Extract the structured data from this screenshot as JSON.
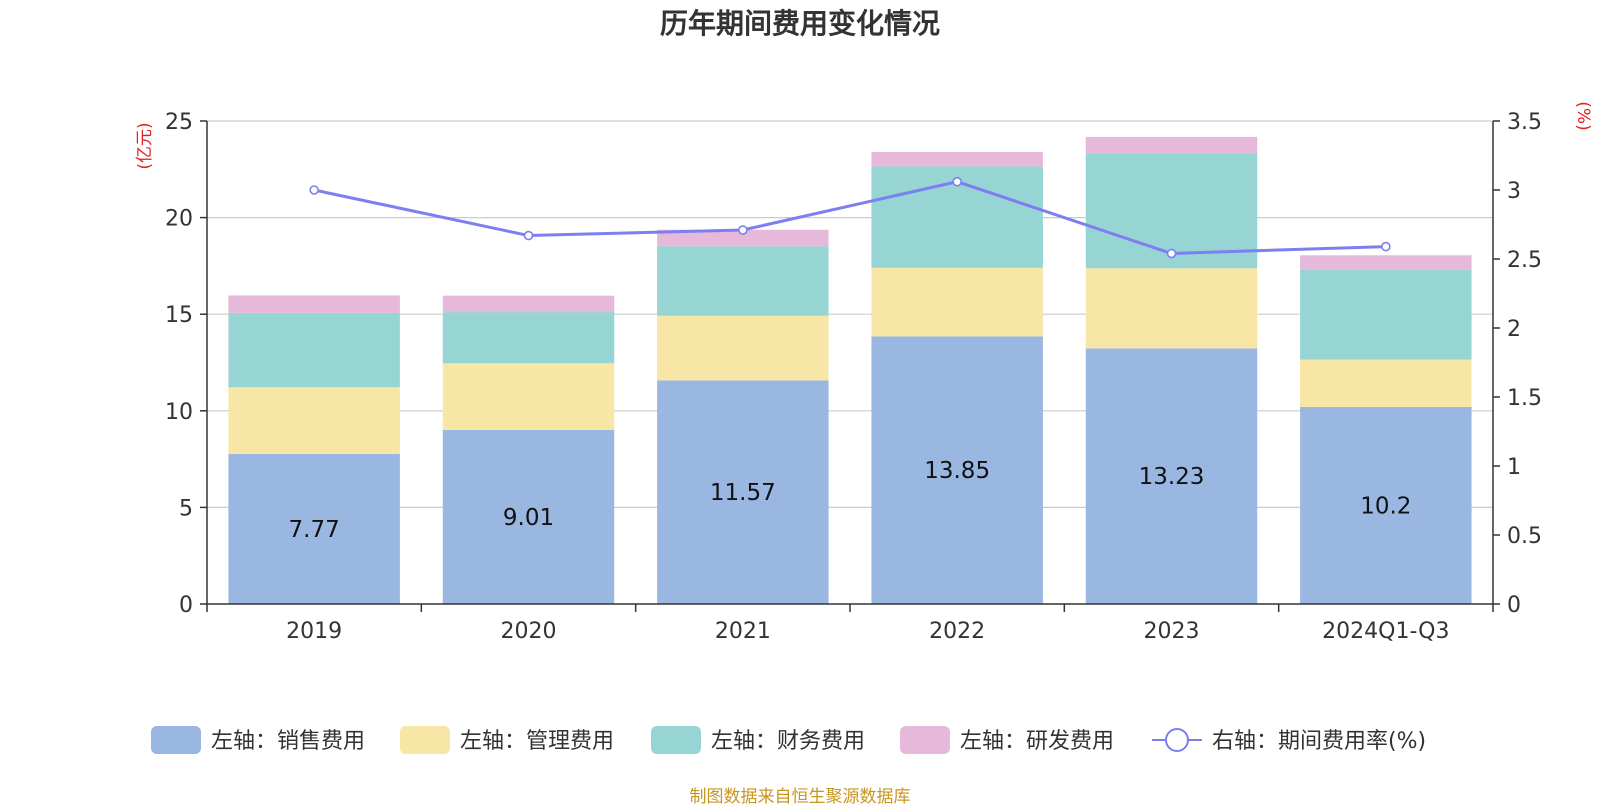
{
  "chart_data": {
    "type": "bar",
    "stacked": true,
    "title": "历年期间费用变化情况",
    "left_axis_unit": "(亿元)",
    "right_axis_unit": "(%)",
    "categories": [
      "2019",
      "2020",
      "2021",
      "2022",
      "2023",
      "2024Q1-Q3"
    ],
    "left_ylim": [
      0,
      25
    ],
    "left_ticks": [
      0,
      5,
      10,
      15,
      20,
      25
    ],
    "right_ylim": [
      0,
      3.5
    ],
    "right_ticks": [
      "0",
      "0.5",
      "1",
      "1.5",
      "2",
      "2.5",
      "3",
      "3.5"
    ],
    "series": [
      {
        "name": "左轴：销售费用",
        "axis": "left",
        "color": "#9ab7e2",
        "values": [
          7.77,
          9.01,
          11.57,
          13.85,
          13.23,
          10.2
        ],
        "labels": [
          "7.77",
          "9.01",
          "11.57",
          "13.85",
          "13.23",
          "10.2"
        ]
      },
      {
        "name": "左轴：管理费用",
        "axis": "left",
        "color": "#f7e6a6",
        "values": [
          3.45,
          3.45,
          3.35,
          3.55,
          4.15,
          2.45
        ]
      },
      {
        "name": "左轴：财务费用",
        "axis": "left",
        "color": "#97d4d4",
        "values": [
          3.85,
          2.65,
          3.6,
          5.25,
          5.95,
          4.65
        ]
      },
      {
        "name": "左轴：研发费用",
        "axis": "left",
        "color": "#e6b8d9",
        "values": [
          0.9,
          0.85,
          0.85,
          0.75,
          0.85,
          0.75
        ]
      },
      {
        "name": "右轴：期间费用率(%)",
        "axis": "right",
        "type": "line",
        "color": "#7b7ff0",
        "values": [
          3.0,
          2.67,
          2.71,
          3.06,
          2.54,
          2.59
        ]
      }
    ],
    "grid": true,
    "legend_position": "bottom"
  },
  "source_note": "制图数据来自恒生聚源数据库"
}
